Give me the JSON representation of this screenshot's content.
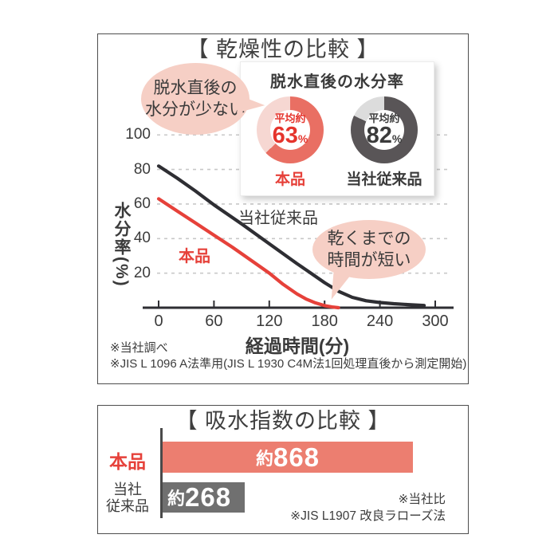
{
  "colors": {
    "red": "#e6413a",
    "salmon": "#ec7e70",
    "dark": "#3b3b3b",
    "line_dark": "#2e2e33",
    "grid": "#c8c8c8",
    "border": "#4d4d4d",
    "bubble_pink": "#f6cfc5",
    "gray_bar": "#707070"
  },
  "sections": {
    "drying": {
      "title": "【 乾燥性の比較 】",
      "bubble_left": {
        "line1": "脱水直後の",
        "line2": "水分が少ない"
      },
      "bubble_right": {
        "line1": "乾くまでの",
        "line2": "時間が短い"
      },
      "footnotes": {
        "line1": "※当社調べ",
        "line2": "※JIS L 1096 A法準用(JIS L 1930 C4M法1回処理直後から測定開始)"
      }
    },
    "absorption": {
      "title": "【 吸水指数の比較 】",
      "footnotes": {
        "line1": "※当社比",
        "line2": "※JIS L1907 改良ラローズ法"
      }
    }
  },
  "chart_data": [
    {
      "id": "drying-line-chart",
      "type": "line",
      "xlabel": "経過時間(分)",
      "ylabel": "水分率(%)",
      "xlim": [
        0,
        300
      ],
      "ylim": [
        0,
        100
      ],
      "xticks": [
        0,
        60,
        120,
        180,
        240,
        300
      ],
      "yticks": [
        20,
        40,
        60,
        80,
        100
      ],
      "grid": "horizontal-dashed",
      "series": [
        {
          "name": "本品",
          "color": "#e6413a",
          "points": [
            [
              0,
              63
            ],
            [
              20,
              56
            ],
            [
              40,
              49
            ],
            [
              60,
              42
            ],
            [
              80,
              35
            ],
            [
              100,
              27.5
            ],
            [
              120,
              20
            ],
            [
              135,
              13.5
            ],
            [
              150,
              8
            ],
            [
              160,
              5
            ],
            [
              170,
              2.8
            ],
            [
              180,
              1.2
            ],
            [
              188,
              0.4
            ],
            [
              195,
              0
            ]
          ]
        },
        {
          "name": "当社従来品",
          "color": "#2e2e33",
          "points": [
            [
              0,
              82
            ],
            [
              20,
              75
            ],
            [
              40,
              67.5
            ],
            [
              60,
              59.5
            ],
            [
              90,
              48.5
            ],
            [
              120,
              37
            ],
            [
              150,
              25.5
            ],
            [
              165,
              20
            ],
            [
              180,
              14.5
            ],
            [
              195,
              9.5
            ],
            [
              210,
              6
            ],
            [
              225,
              4
            ],
            [
              240,
              3
            ],
            [
              255,
              2.3
            ],
            [
              270,
              1.8
            ],
            [
              288,
              1.3
            ]
          ]
        }
      ]
    },
    {
      "id": "moisture-after-spin-donuts",
      "type": "pie",
      "title": "脱水直後の水分率",
      "donuts": [
        {
          "label": "本品",
          "prefix": "平均約",
          "value": "63",
          "unit": "%",
          "percent": 63,
          "ring_color": "#e96f63",
          "rest_color": "#f6d7d2",
          "text_color": "#e5342c",
          "label_color": "#e6413a"
        },
        {
          "label": "当社従来品",
          "prefix": "平均約",
          "value": "82",
          "unit": "%",
          "percent": 82,
          "ring_color": "#595557",
          "rest_color": "#dcdcdc",
          "text_color": "#3b3b3b",
          "label_color": "#3b3b3b"
        }
      ]
    },
    {
      "id": "absorption-index-bars",
      "type": "bar",
      "categories": [
        "本品",
        "当社従来品"
      ],
      "categories_display": [
        [
          "本品"
        ],
        [
          "当社",
          "従来品"
        ]
      ],
      "values": [
        868,
        268
      ],
      "value_labels": [
        {
          "prefix": "約",
          "number": "868"
        },
        {
          "prefix": "約",
          "number": "268"
        }
      ],
      "colors": [
        "#ec7e70",
        "#707070"
      ],
      "xlim": [
        0,
        950
      ]
    }
  ]
}
